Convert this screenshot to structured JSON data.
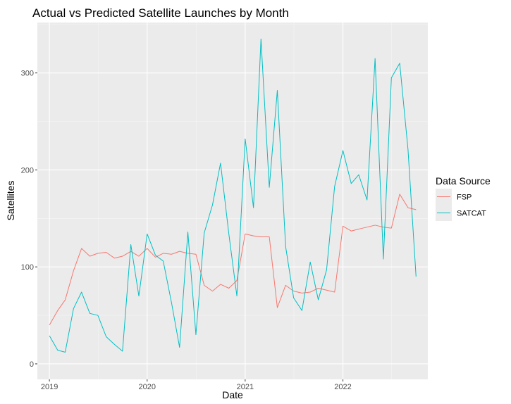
{
  "chart_data": {
    "type": "line",
    "title": "Actual vs Predicted Satellite Launches by Month",
    "xlabel": "Date",
    "ylabel": "Satellites",
    "x_tick_labels": [
      "2019",
      "2020",
      "2021",
      "2022"
    ],
    "y_tick_labels": [
      "0",
      "100",
      "200",
      "300"
    ],
    "y_ticks": [
      0,
      100,
      200,
      300
    ],
    "xlim": [
      "2018-11-17",
      "2022-11-14"
    ],
    "ylim": [
      -16,
      352
    ],
    "grid": true,
    "legend": {
      "title": "Data Source",
      "position": "right"
    },
    "colors": {
      "panel": "#EBEBEB",
      "grid_major": "#FFFFFF",
      "grid_minor": "#F5F5F5",
      "FSP": "#F8766D",
      "SATCAT": "#00BFC4"
    },
    "series": [
      {
        "name": "FSP",
        "points": [
          [
            "2019-01-01",
            40
          ],
          [
            "2019-02-01",
            55
          ],
          [
            "2019-03-01",
            66
          ],
          [
            "2019-04-01",
            96
          ],
          [
            "2019-05-01",
            119
          ],
          [
            "2019-06-01",
            111
          ],
          [
            "2019-07-01",
            114
          ],
          [
            "2019-08-01",
            115
          ],
          [
            "2019-09-01",
            109
          ],
          [
            "2019-10-01",
            111
          ],
          [
            "2019-11-01",
            116
          ],
          [
            "2019-12-01",
            111
          ],
          [
            "2020-01-01",
            119
          ],
          [
            "2020-02-01",
            110
          ],
          [
            "2020-03-01",
            114
          ],
          [
            "2020-04-01",
            113
          ],
          [
            "2020-05-01",
            116
          ],
          [
            "2020-06-01",
            114
          ],
          [
            "2020-07-01",
            113
          ],
          [
            "2020-08-01",
            81
          ],
          [
            "2020-09-01",
            75
          ],
          [
            "2020-10-01",
            82
          ],
          [
            "2020-11-01",
            78
          ],
          [
            "2020-12-01",
            86
          ],
          [
            "2021-01-01",
            134
          ],
          [
            "2021-02-01",
            132
          ],
          [
            "2021-03-01",
            131
          ],
          [
            "2021-04-01",
            131
          ],
          [
            "2021-05-01",
            58
          ],
          [
            "2021-06-01",
            81
          ],
          [
            "2021-07-01",
            75
          ],
          [
            "2021-08-01",
            73
          ],
          [
            "2021-09-01",
            74
          ],
          [
            "2021-10-01",
            78
          ],
          [
            "2021-11-01",
            76
          ],
          [
            "2021-12-01",
            74
          ],
          [
            "2022-01-01",
            142
          ],
          [
            "2022-02-01",
            137
          ],
          [
            "2022-03-01",
            139
          ],
          [
            "2022-04-01",
            141
          ],
          [
            "2022-05-01",
            143
          ],
          [
            "2022-06-01",
            141
          ],
          [
            "2022-07-01",
            140
          ],
          [
            "2022-08-01",
            175
          ],
          [
            "2022-09-01",
            161
          ],
          [
            "2022-10-01",
            159
          ]
        ]
      },
      {
        "name": "SATCAT",
        "points": [
          [
            "2019-01-01",
            29
          ],
          [
            "2019-02-01",
            14
          ],
          [
            "2019-03-01",
            12
          ],
          [
            "2019-04-01",
            57
          ],
          [
            "2019-05-01",
            74
          ],
          [
            "2019-06-01",
            52
          ],
          [
            "2019-07-01",
            50
          ],
          [
            "2019-08-01",
            28
          ],
          [
            "2019-09-01",
            20
          ],
          [
            "2019-10-01",
            13
          ],
          [
            "2019-11-01",
            123
          ],
          [
            "2019-12-01",
            70
          ],
          [
            "2020-01-01",
            134
          ],
          [
            "2020-02-01",
            112
          ],
          [
            "2020-03-01",
            106
          ],
          [
            "2020-04-01",
            63
          ],
          [
            "2020-05-01",
            17
          ],
          [
            "2020-06-01",
            136
          ],
          [
            "2020-07-01",
            30
          ],
          [
            "2020-08-01",
            135
          ],
          [
            "2020-09-01",
            164
          ],
          [
            "2020-10-01",
            207
          ],
          [
            "2020-11-01",
            134
          ],
          [
            "2020-12-01",
            70
          ],
          [
            "2021-01-01",
            232
          ],
          [
            "2021-02-01",
            161
          ],
          [
            "2021-03-01",
            335
          ],
          [
            "2021-04-01",
            182
          ],
          [
            "2021-05-01",
            282
          ],
          [
            "2021-06-01",
            121
          ],
          [
            "2021-07-01",
            68
          ],
          [
            "2021-08-01",
            55
          ],
          [
            "2021-09-01",
            105
          ],
          [
            "2021-10-01",
            66
          ],
          [
            "2021-11-01",
            97
          ],
          [
            "2021-12-01",
            183
          ],
          [
            "2022-01-01",
            220
          ],
          [
            "2022-02-01",
            186
          ],
          [
            "2022-03-01",
            195
          ],
          [
            "2022-04-01",
            169
          ],
          [
            "2022-05-01",
            315
          ],
          [
            "2022-06-01",
            108
          ],
          [
            "2022-07-01",
            295
          ],
          [
            "2022-08-01",
            310
          ],
          [
            "2022-09-01",
            221
          ],
          [
            "2022-10-01",
            90
          ]
        ]
      }
    ]
  }
}
